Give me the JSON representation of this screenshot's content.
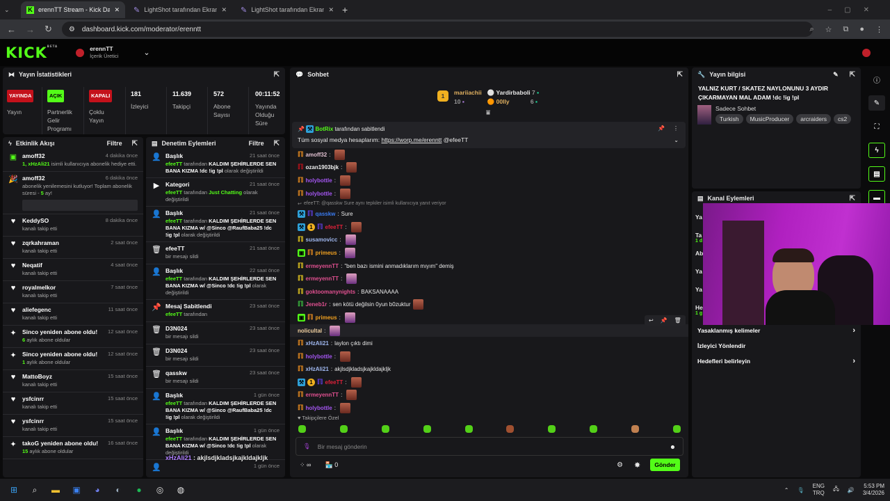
{
  "browser": {
    "tabs": [
      {
        "title": "erennTT Stream - Kick Dashboard"
      },
      {
        "title": "LightShot tarafından Ekran Görüntüsü"
      },
      {
        "title": "LightShot tarafından Ekran Görüntüsü"
      }
    ],
    "url": "dashboard.kick.com/moderator/erenntt"
  },
  "header": {
    "logo": "KICK",
    "beta": "BETA",
    "user": "erennTT",
    "role": "İçerik Üretici"
  },
  "stats": {
    "title": "Yayın İstatistikleri",
    "items": [
      {
        "badge": "YAYINDA",
        "badge_color": "#c4111b",
        "label": "Yayın"
      },
      {
        "badge": "AÇIK",
        "badge_color": "#53fc18",
        "label": "Partnerlik Gelir Programı"
      },
      {
        "badge": "KAPALI",
        "badge_color": "#c4111b",
        "label": "Çoklu Yayın"
      },
      {
        "value": "181",
        "label": "İzleyici"
      },
      {
        "value": "11.639",
        "label": "Takipçi"
      },
      {
        "value": "572",
        "label": "Abone Sayısı"
      },
      {
        "value": "00:11:52",
        "label": "Yayında Olduğu Süre"
      }
    ]
  },
  "activity": {
    "title": "Etkinlik Akışı",
    "filter": "Filtre",
    "items": [
      {
        "icon": "gift",
        "name": "amoff32",
        "time": "4 dakika önce",
        "hl": "1, xHzAli21",
        "desc": " isimli kullanıcıya abonelik hediye etti."
      },
      {
        "icon": "party",
        "name": "amoff32",
        "time": "6 dakika önce",
        "desc": "abonelik yenilemesini kutluyor! Toplam abonelik süresi - ",
        "hl2": "5",
        "desc2": " ay!"
      },
      {
        "icon": "heart",
        "name": "KeddySO",
        "time": "8 dakika önce",
        "desc": "kanalı takip etti"
      },
      {
        "icon": "heart",
        "name": "zqrkahraman",
        "time": "2 saat önce",
        "desc": "kanalı takip etti"
      },
      {
        "icon": "heart",
        "name": "Neqatif",
        "time": "4 saat önce",
        "desc": "kanalı takip etti"
      },
      {
        "icon": "heart",
        "name": "royalmelkor",
        "time": "7 saat önce",
        "desc": "kanalı takip etti"
      },
      {
        "icon": "heart",
        "name": "aliefegenc",
        "time": "11 saat önce",
        "desc": "kanalı takip etti"
      },
      {
        "icon": "sparkle",
        "name": "Sinco yeniden abone oldu!",
        "time": "12 saat önce",
        "hl": "6",
        "desc": " aylık abone oldular"
      },
      {
        "icon": "sparkle",
        "name": "Sinco yeniden abone oldu!",
        "time": "12 saat önce",
        "hl": "1",
        "desc": " aylık abone oldular"
      },
      {
        "icon": "heart",
        "name": "MattoBoyz",
        "time": "15 saat önce",
        "desc": "kanalı takip etti"
      },
      {
        "icon": "heart",
        "name": "ysfcinrr",
        "time": "15 saat önce",
        "desc": "kanalı takip etti"
      },
      {
        "icon": "heart",
        "name": "ysfcinrr",
        "time": "15 saat önce",
        "desc": "kanalı takip etti"
      },
      {
        "icon": "sparkle",
        "name": "takoG yeniden abone oldu!",
        "time": "16 saat önce",
        "hl": "15",
        "desc": " aylık abone oldular"
      }
    ]
  },
  "modactions": {
    "title": "Denetim Eylemleri",
    "filter": "Filtre",
    "items": [
      {
        "icon": "user",
        "name": "Başlık",
        "time": "21 saat önce",
        "by": "efeeTT",
        "mid": " tarafından ",
        "val": "KALDIM ŞEHİRLERDE SEN BANA KIZMA !dc !ig !pl",
        "end": " olarak değiştirildi"
      },
      {
        "icon": "category",
        "name": "Kategori",
        "time": "21 saat önce",
        "by": "efeeTT",
        "mid": " tarafından ",
        "valg": "Just Chatting",
        "end": " olarak değiştirildi"
      },
      {
        "icon": "user",
        "name": "Başlık",
        "time": "21 saat önce",
        "by": "efeeTT",
        "mid": " tarafından ",
        "val": "KALDIM ŞEHİRLERDE SEN BANA KIZMA w/ @Sinco @RaufBaba25 !dc !ig !pl",
        "end": " olarak değiştirildi"
      },
      {
        "icon": "trash",
        "name": "efeeTT",
        "time": "21 saat önce",
        "end": "bir mesajı sildi"
      },
      {
        "icon": "user",
        "name": "Başlık",
        "time": "22 saat önce",
        "by": "efeeTT",
        "mid": " tarafından ",
        "val": "KALDIM ŞEHİRLERDE SEN BANA KIZMA w/ @Sinco !dc !ig !pl",
        "end": " olarak değiştirildi"
      },
      {
        "icon": "pin",
        "name": "Mesaj Sabitlendi",
        "time": "23 saat önce",
        "by": "efeeTT",
        "mid": " tarafından"
      },
      {
        "icon": "trash",
        "name": "D3N024",
        "time": "23 saat önce",
        "end": "bir mesajı sildi"
      },
      {
        "icon": "trash",
        "name": "D3N024",
        "time": "23 saat önce",
        "end": "bir mesajı sildi"
      },
      {
        "icon": "trash",
        "name": "qasskw",
        "time": "23 saat önce",
        "end": "bir mesajı sildi"
      },
      {
        "icon": "user",
        "name": "Başlık",
        "time": "1 gün önce",
        "by": "efeeTT",
        "mid": " tarafından ",
        "val": "KALDIM ŞEHİRLERDE SEN BANA KIZMA w/ @Sinco @RaufBaba25 !dc !ig !pl",
        "end": " olarak değiştirildi"
      },
      {
        "icon": "user",
        "name": "Başlık",
        "time": "1 gün önce",
        "by": "efeeTT",
        "mid": " tarafından ",
        "val": "KALDIM ŞEHİRLERDE SEN BANA KIZMA w/ @Sinco !dc !ig !pl",
        "end": " olarak değiştirildi"
      },
      {
        "icon": "user",
        "name": "",
        "time": "1 gün önce"
      }
    ]
  },
  "overlay_chat": {
    "user": "xHzAli21",
    "text": " : akjlsdjkladsjkajkldajkljk"
  },
  "chat": {
    "title": "Sohbet",
    "leaderboard": [
      {
        "rank": "1",
        "name": "mariiachii",
        "count": "10"
      },
      {
        "rank": "2",
        "name": "Yardirbaboli",
        "count": "7"
      },
      {
        "rank": "3",
        "name": "00lly",
        "count": "6"
      }
    ],
    "pinned": {
      "by": "BotRix",
      "by_suffix": " tarafından sabitlendi",
      "text": "Tüm sosyal medya hesaplarım: ",
      "link": "https://worp.me/erenntt",
      "mention": " @efeeTT"
    },
    "messages": [
      {
        "user": "amoff32",
        "color": "#e0c0d0",
        "text": "",
        "emote": "r"
      },
      {
        "user": "ozan1903bjk",
        "color": "#f0f0f0",
        "text": "",
        "emote": "r",
        "badge": "#c4111b"
      },
      {
        "user": "holybottle",
        "color": "#a355f0",
        "text": "",
        "emote": "r"
      },
      {
        "user": "holybottle",
        "color": "#a355f0",
        "text": "",
        "emote": "r"
      },
      {
        "reply": "efeeTT: @qasskw Sure aynı tepkiler isimli kullanıcıya yanıt veriyor"
      },
      {
        "user": "qasskw",
        "color": "#3a7bf0",
        "text": " Sure",
        "mod": true
      },
      {
        "user": "efeeTT",
        "color": "#e0213a",
        "text": "",
        "emote": "r",
        "mod": true,
        "coin": true
      },
      {
        "user": "susamovicc",
        "color": "#a0b8f0",
        "text": "",
        "emote": "p",
        "badge": "#f0d020"
      },
      {
        "user": "primeus",
        "color": "#f0a020",
        "text": "",
        "emote": "p",
        "gift": true
      },
      {
        "user": "ermeyennTT",
        "color": "#e05090",
        "text": " \"ben bazı ismini anmadıklarım mıyım\" demiş",
        "badge": "#f0d020"
      },
      {
        "user": "ermeyennTT",
        "color": "#e05090",
        "text": "",
        "emote": "p",
        "badge": "#f0d020"
      },
      {
        "user": "goktoomanynights",
        "color": "#e05090",
        "text": " BAKSANAAAA",
        "badge": "#f0d020"
      },
      {
        "user": "Jeneb1r",
        "color": "#e05090",
        "text": " sen kötü değilsin 0yun b0zuktur",
        "emote": "r",
        "badge": "#3cc040"
      },
      {
        "user": "primeus",
        "color": "#f0a020",
        "text": "",
        "emote": "p",
        "gift": true
      },
      {
        "user": "nolicultal",
        "color": "#f0d0a0",
        "text": "",
        "emote": "p",
        "nobadge": true,
        "hl": true
      },
      {
        "user": "xHzAli21",
        "color": "#a0b8f0",
        "text": " laylon çıktı dimi"
      },
      {
        "user": "holybottle",
        "color": "#a355f0",
        "text": "",
        "emote": "r"
      },
      {
        "user": "xHzAli21",
        "color": "#a0b8f0",
        "text": " akjlsdjkladsjkajkldajkljk"
      },
      {
        "user": "efeeTT",
        "color": "#e0213a",
        "text": "",
        "emote": "r",
        "mod": true,
        "coin": true
      },
      {
        "user": "ermeyennTT",
        "color": "#e05090",
        "text": "",
        "emote": "r"
      },
      {
        "user": "holybottle",
        "color": "#a355f0",
        "text": "",
        "emote": "r"
      }
    ],
    "followers_only": "Takipçilere Özel",
    "input_placeholder": "Bir mesaj gönderin",
    "points": "∞",
    "shop_count": "0",
    "send": "Gönder"
  },
  "streaminfo": {
    "title": "Yayın bilgisi",
    "stream_title": "YALNIZ KURT / SKATEZ NAYLONUNU 3 AYDIR ÇIKARMAYAN MAL ADAM !dc !ig !pl",
    "category": "Sadece Sohbet",
    "tags": [
      "Turkish",
      "MusicProducer",
      "arcraiders",
      "cs2"
    ]
  },
  "channelactions": {
    "title": "Kanal Eylemleri",
    "hidden": [
      {
        "l": "Ya"
      },
      {
        "l": "Ta",
        "s": "1 d"
      },
      {
        "l": "Ab"
      },
      {
        "l": "Ya"
      },
      {
        "l": "Ya"
      },
      {
        "l": "He",
        "s": "1 g"
      }
    ],
    "items": [
      {
        "label": "Yasaklanmış kelimeler",
        "arrow": true
      },
      {
        "label": "İzleyici Yönlendir",
        "arrow": false
      },
      {
        "label": "Hedefleri belirleyin",
        "arrow": true
      }
    ]
  },
  "taskbar": {
    "lang1": "ENG",
    "lang2": "TRQ",
    "time": "5:53 PM",
    "date": "3/4/2026"
  },
  "colors": {
    "accent": "#53fc18",
    "panel": "#18181b"
  }
}
